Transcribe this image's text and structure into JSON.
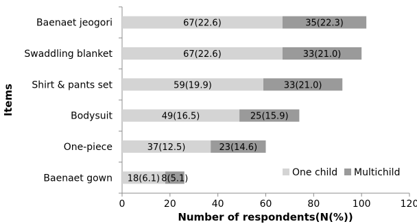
{
  "chart_data": {
    "type": "bar",
    "orientation": "horizontal",
    "stacked": true,
    "xlabel": "Number of respondents(N(%))",
    "ylabel": "Items",
    "xlim": [
      0,
      120
    ],
    "xticks": [
      "0",
      "20",
      "40",
      "60",
      "80",
      "100",
      "120"
    ],
    "grid": false,
    "legend_position": "bottom-right",
    "categories": [
      "Baenaet jeogori",
      "Swaddling blanket",
      "Shirt & pants set",
      "Bodysuit",
      "One-piece",
      "Baenaet gown"
    ],
    "series": [
      {
        "name": "One child",
        "color": "#d4d4d4",
        "values": [
          67,
          67,
          59,
          49,
          37,
          18
        ],
        "labels": [
          "67(22.6)",
          "67(22.6)",
          "59(19.9)",
          "49(16.5)",
          "37(12.5)",
          "18(6.1)"
        ]
      },
      {
        "name": "Multichild",
        "color": "#9a9a9a",
        "values": [
          35,
          33,
          33,
          25,
          23,
          8
        ],
        "labels": [
          "35(22.3)",
          "33(21.0)",
          "33(21.0)",
          "25(15.9)",
          "23(14.6)",
          "8(5.1)"
        ]
      }
    ]
  }
}
